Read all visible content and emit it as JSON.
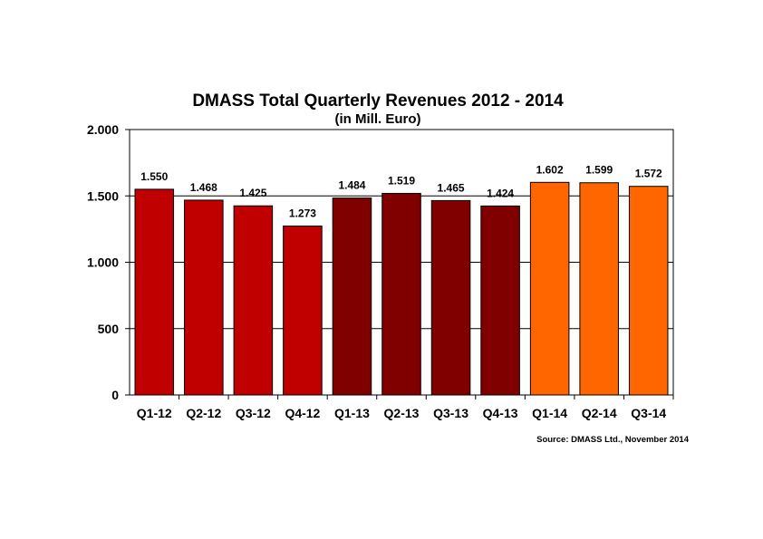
{
  "chart_data": {
    "type": "bar",
    "title": "DMASS Total Quarterly Revenues 2012 - 2014",
    "subtitle": "(in Mill. Euro)",
    "xlabel": "",
    "ylabel": "",
    "ylim": [
      0,
      2000
    ],
    "yticks": [
      0,
      500,
      1000,
      1500,
      2000
    ],
    "ytick_labels": [
      "0",
      "500",
      "1.000",
      "1.500",
      "2.000"
    ],
    "grid": true,
    "categories": [
      "Q1-12",
      "Q2-12",
      "Q3-12",
      "Q4-12",
      "Q1-13",
      "Q2-13",
      "Q3-13",
      "Q4-13",
      "Q1-14",
      "Q2-14",
      "Q3-14"
    ],
    "values": [
      1550,
      1468,
      1425,
      1273,
      1484,
      1519,
      1465,
      1424,
      1602,
      1599,
      1572
    ],
    "value_labels": [
      "1.550",
      "1.468",
      "1.425",
      "1.273",
      "1.484",
      "1.519",
      "1.465",
      "1.424",
      "1.602",
      "1.599",
      "1.572"
    ],
    "bar_colors": [
      "#c00000",
      "#c00000",
      "#c00000",
      "#c00000",
      "#800000",
      "#800000",
      "#800000",
      "#800000",
      "#ff6600",
      "#ff6600",
      "#ff6600"
    ],
    "source": "Source: DMASS Ltd., November 2014"
  }
}
